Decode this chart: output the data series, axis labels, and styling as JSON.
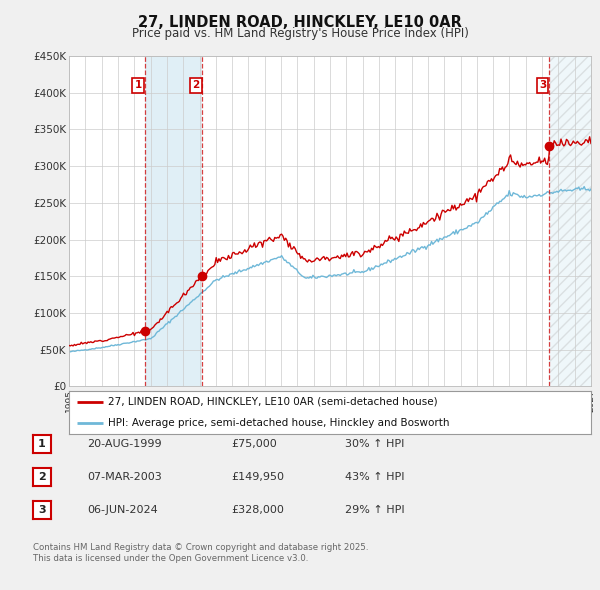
{
  "title": "27, LINDEN ROAD, HINCKLEY, LE10 0AR",
  "subtitle": "Price paid vs. HM Land Registry's House Price Index (HPI)",
  "legend_line1": "27, LINDEN ROAD, HINCKLEY, LE10 0AR (semi-detached house)",
  "legend_line2": "HPI: Average price, semi-detached house, Hinckley and Bosworth",
  "transactions": [
    {
      "num": 1,
      "date_label": "20-AUG-1999",
      "date_x": 1999.64,
      "price": 75000,
      "pct": "30% ↑ HPI"
    },
    {
      "num": 2,
      "date_label": "07-MAR-2003",
      "date_x": 2003.18,
      "price": 149950,
      "pct": "43% ↑ HPI"
    },
    {
      "num": 3,
      "date_label": "06-JUN-2024",
      "date_x": 2024.43,
      "price": 328000,
      "pct": "29% ↑ HPI"
    }
  ],
  "hpi_color": "#6fb8d8",
  "price_color": "#cc0000",
  "shade_color": "#cce5f0",
  "background_color": "#f0f0f0",
  "plot_bg_color": "#ffffff",
  "grid_color": "#cccccc",
  "ylim": [
    0,
    450000
  ],
  "yticks": [
    0,
    50000,
    100000,
    150000,
    200000,
    250000,
    300000,
    350000,
    400000,
    450000
  ],
  "xlim_start": 1995,
  "xlim_end": 2027,
  "footnote_line1": "Contains HM Land Registry data © Crown copyright and database right 2025.",
  "footnote_line2": "This data is licensed under the Open Government Licence v3.0."
}
